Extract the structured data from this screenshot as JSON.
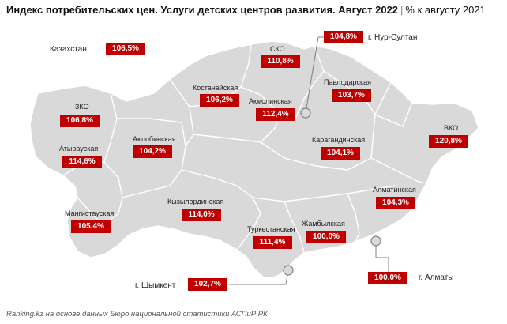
{
  "title": {
    "main": "Индекс потребительских цен. Услуги детских центров развития. Август 2022",
    "separator": "|",
    "unit": "% к августу 2021"
  },
  "colors": {
    "value_box": "#c00000",
    "region_fill": "#d9d9d9",
    "border": "#ffffff"
  },
  "regions": {
    "kazakhstan": {
      "name": "Казахстан",
      "value": "106,5%"
    },
    "nur_sultan": {
      "name": "г. Нур-Султан",
      "value": "104,8%"
    },
    "sko": {
      "name": "СКО",
      "value": "110,8%"
    },
    "kostanay": {
      "name": "Костанайская",
      "value": "106,2%"
    },
    "akmola": {
      "name": "Акмолинская",
      "value": "112,4%"
    },
    "pavlodar": {
      "name": "Павлодарская",
      "value": "103,7%"
    },
    "zko": {
      "name": "ЗКО",
      "value": "106,8%"
    },
    "atyrau": {
      "name": "Атырауская",
      "value": "114,6%"
    },
    "aktobe": {
      "name": "Актюбинская",
      "value": "104,2%"
    },
    "karaganda": {
      "name": "Карагандинская",
      "value": "104,1%"
    },
    "vko": {
      "name": "ВКО",
      "value": "120,8%"
    },
    "almaty_region": {
      "name": "Алматинская",
      "value": "104,3%"
    },
    "kyzylorda": {
      "name": "Кызылординская",
      "value": "114,0%"
    },
    "mangystau": {
      "name": "Мангистауская",
      "value": "105,4%"
    },
    "turkestan": {
      "name": "Туркестанская",
      "value": "111,4%"
    },
    "zhambyl": {
      "name": "Жамбылская",
      "value": "100,0%"
    },
    "shymkent": {
      "name": "г. Шымкент",
      "value": "102,7%"
    },
    "almaty_city": {
      "name": "г. Алматы",
      "value": "100,0%"
    }
  },
  "footer": "Ranking.kz на основе данных Бюро национальной статистики АСПиР РК"
}
